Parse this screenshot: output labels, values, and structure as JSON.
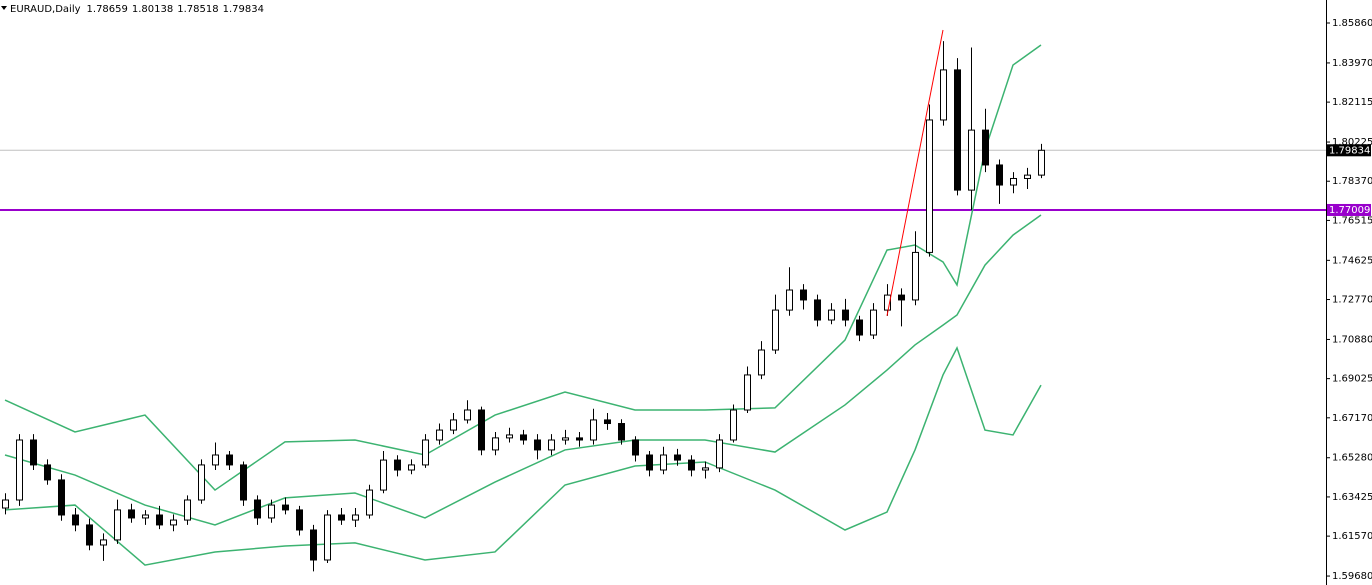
{
  "chart_data": {
    "type": "candlestick",
    "symbol": "EURAUD,Daily",
    "ylim": [
      1.59256,
      1.86949
    ],
    "yticks": [
      {
        "value": 1.8586,
        "label": "1.85860"
      },
      {
        "value": 1.8397,
        "label": "1.83970"
      },
      1.82115,
      1.80225,
      {
        "value": 1.7837,
        "label": "1.78370"
      },
      1.76515,
      1.74625,
      {
        "value": 1.7277,
        "label": "1.72770"
      },
      {
        "value": 1.7088,
        "label": "1.70880"
      },
      1.69025,
      {
        "value": 1.6717,
        "label": "1.67170"
      },
      {
        "value": 1.6528,
        "label": "1.65280"
      },
      1.63425,
      {
        "value": 1.6157,
        "label": "1.61570"
      },
      {
        "value": 1.5968,
        "label": "1.59680"
      }
    ],
    "bull_color": "#ffffff",
    "bear_color": "#000000",
    "candles": {
      "open": [
        1.629,
        1.6328,
        1.6612,
        1.6494,
        1.6423,
        1.6257,
        1.621,
        1.6115,
        1.6139,
        1.6281,
        1.6243,
        1.6257,
        1.621,
        1.6233,
        1.6328,
        1.6494,
        1.6541,
        1.6494,
        1.6328,
        1.6243,
        1.6304,
        1.6281,
        1.6186,
        1.6044,
        1.6257,
        1.6233,
        1.6257,
        1.6375,
        1.6517,
        1.647,
        1.6494,
        1.6612,
        1.6659,
        1.6707,
        1.6754,
        1.6565,
        1.6622,
        1.6636,
        1.6612,
        1.6565,
        1.6612,
        1.6622,
        1.6612,
        1.6707,
        1.669,
        1.6612,
        1.6541,
        1.647,
        1.6541,
        1.6517,
        1.647,
        1.648,
        1.6612,
        1.6754,
        1.692,
        1.7038,
        1.7227,
        1.7322,
        1.7275,
        1.718,
        1.7227,
        1.718,
        1.7109,
        1.7227,
        1.7298,
        1.7275,
        1.75,
        1.8127,
        1.8364,
        1.7795,
        1.8079,
        1.7914,
        1.7819,
        1.785,
        1.78659
      ],
      "high": [
        1.636,
        1.664,
        1.664,
        1.652,
        1.645,
        1.629,
        1.624,
        1.617,
        1.633,
        1.631,
        1.628,
        1.63,
        1.626,
        1.635,
        1.652,
        1.66,
        1.656,
        1.651,
        1.635,
        1.633,
        1.634,
        1.63,
        1.621,
        1.628,
        1.629,
        1.629,
        1.64,
        1.656,
        1.654,
        1.652,
        1.664,
        1.669,
        1.674,
        1.68,
        1.677,
        1.665,
        1.667,
        1.666,
        1.664,
        1.664,
        1.666,
        1.665,
        1.676,
        1.674,
        1.671,
        1.663,
        1.656,
        1.658,
        1.657,
        1.654,
        1.651,
        1.664,
        1.678,
        1.696,
        1.708,
        1.73,
        1.743,
        1.735,
        1.73,
        1.726,
        1.728,
        1.72,
        1.726,
        1.735,
        1.733,
        1.76,
        1.82,
        1.85,
        1.842,
        1.847,
        1.818,
        1.794,
        1.788,
        1.79,
        1.80138
      ],
      "low": [
        1.626,
        1.63,
        1.647,
        1.64,
        1.623,
        1.618,
        1.609,
        1.604,
        1.612,
        1.622,
        1.621,
        1.619,
        1.618,
        1.621,
        1.631,
        1.647,
        1.647,
        1.63,
        1.621,
        1.622,
        1.626,
        1.616,
        1.599,
        1.603,
        1.621,
        1.62,
        1.624,
        1.636,
        1.644,
        1.645,
        1.648,
        1.659,
        1.664,
        1.669,
        1.654,
        1.654,
        1.66,
        1.659,
        1.652,
        1.654,
        1.659,
        1.658,
        1.659,
        1.666,
        1.659,
        1.651,
        1.644,
        1.645,
        1.649,
        1.644,
        1.643,
        1.646,
        1.66,
        1.674,
        1.69,
        1.702,
        1.72,
        1.723,
        1.715,
        1.716,
        1.715,
        1.708,
        1.709,
        1.72,
        1.715,
        1.725,
        1.748,
        1.81,
        1.777,
        1.77,
        1.788,
        1.773,
        1.778,
        1.78,
        1.78518
      ],
      "close": [
        1.6328,
        1.6612,
        1.6494,
        1.6423,
        1.6257,
        1.621,
        1.6115,
        1.6139,
        1.6281,
        1.6243,
        1.6257,
        1.621,
        1.6233,
        1.6328,
        1.6494,
        1.6541,
        1.6494,
        1.6328,
        1.6243,
        1.6304,
        1.6281,
        1.6186,
        1.6044,
        1.6257,
        1.6233,
        1.6257,
        1.6375,
        1.6517,
        1.647,
        1.6494,
        1.6612,
        1.6659,
        1.6707,
        1.6754,
        1.6565,
        1.6622,
        1.6636,
        1.6612,
        1.6565,
        1.6612,
        1.6622,
        1.6612,
        1.6707,
        1.669,
        1.6612,
        1.6541,
        1.647,
        1.6541,
        1.6517,
        1.647,
        1.648,
        1.6612,
        1.6754,
        1.692,
        1.7038,
        1.7227,
        1.7322,
        1.7275,
        1.718,
        1.7227,
        1.718,
        1.7109,
        1.7227,
        1.7298,
        1.7275,
        1.75,
        1.8127,
        1.8364,
        1.7795,
        1.8079,
        1.7914,
        1.7819,
        1.785,
        1.78659,
        1.79834
      ]
    },
    "bands": {
      "color": "#3cb371",
      "x": [
        0,
        5,
        10,
        15,
        20,
        25,
        30,
        35,
        40,
        45,
        50,
        55,
        60,
        63,
        65,
        67,
        68,
        70,
        72,
        74
      ],
      "series": [
        {
          "values": [
            1.6801,
            1.665,
            1.673,
            1.6375,
            1.6603,
            1.6612,
            1.6541,
            1.673,
            1.6839,
            1.6754,
            1.6754,
            1.6764,
            1.7085,
            1.7511,
            1.7535,
            1.7455,
            1.7346,
            1.7985,
            1.8387,
            1.8482
          ]
        },
        {
          "values": [
            1.6541,
            1.6446,
            1.6304,
            1.621,
            1.6338,
            1.6361,
            1.6243,
            1.6413,
            1.6565,
            1.6612,
            1.6612,
            1.6555,
            1.6778,
            1.6943,
            1.7062,
            1.7156,
            1.7204,
            1.744,
            1.7582,
            1.7677
          ]
        },
        {
          "values": [
            1.6281,
            1.6304,
            1.602,
            1.6082,
            1.611,
            1.6125,
            1.6044,
            1.6082,
            1.6399,
            1.6489,
            1.6508,
            1.6375,
            1.6186,
            1.6271,
            1.6565,
            1.692,
            1.7048,
            1.6659,
            1.6636,
            1.6872
          ]
        }
      ]
    },
    "trend_line": {
      "color": "#ff0000",
      "x": [
        63,
        67
      ],
      "y": [
        1.72,
        1.8553
      ]
    },
    "hline": {
      "value": 1.77009,
      "color": "#9900cc"
    },
    "price_line_color": "#c0c0c0"
  }
}
